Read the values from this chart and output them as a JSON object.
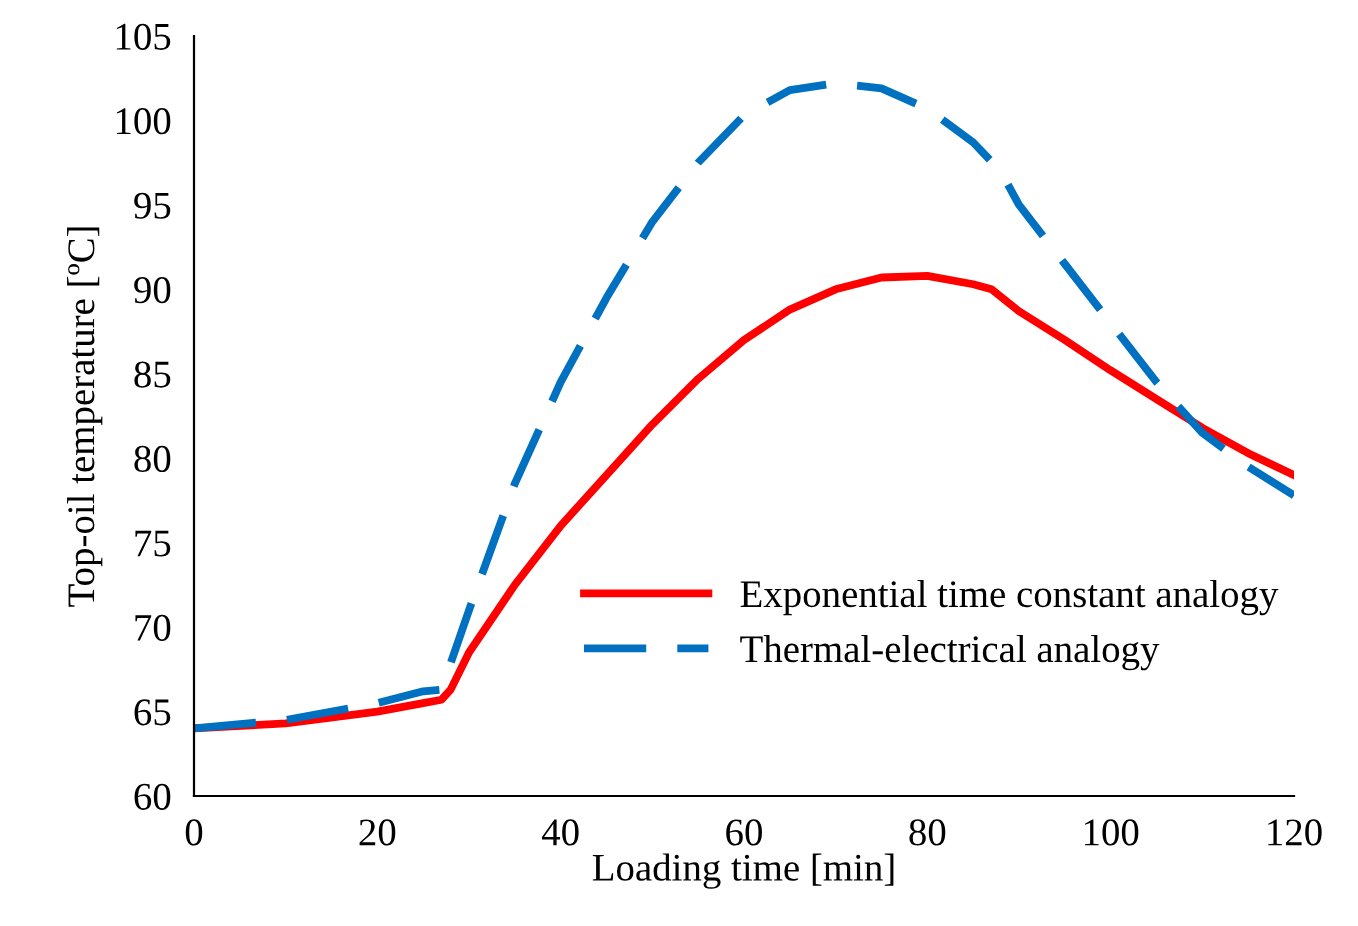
{
  "chart_data": {
    "type": "line",
    "xlabel": "Loading time [min]",
    "ylabel": "Top-oil temperature [ºC]",
    "xlim": [
      0,
      120
    ],
    "xticks": [
      0,
      20,
      40,
      60,
      80,
      100,
      120
    ],
    "ylim": [
      60,
      105
    ],
    "yticks": [
      60,
      65,
      70,
      75,
      80,
      85,
      90,
      95,
      100,
      105
    ],
    "grid": false,
    "legend": "right",
    "marker": "none",
    "series": [
      {
        "name": "Exponential time constant analogy",
        "color": "#ff0000",
        "line_style": "solid",
        "x": [
          0,
          10,
          20,
          25,
          27,
          28,
          30,
          35,
          40,
          45,
          50,
          55,
          60,
          65,
          70,
          75,
          80,
          85,
          87,
          90,
          95,
          100,
          105,
          110,
          115,
          120
        ],
        "values": [
          64,
          64.3,
          65,
          65.5,
          65.7,
          66.3,
          68.5,
          72.5,
          76,
          79,
          82,
          84.7,
          87,
          88.8,
          90,
          90.7,
          90.8,
          90.3,
          90,
          88.7,
          87,
          85.2,
          83.5,
          81.8,
          80.3,
          79
        ]
      },
      {
        "name": "Thermal-electrical analogy",
        "color": "#0070c0",
        "line_style": "dashed",
        "x": [
          0,
          10,
          20,
          25,
          27,
          30,
          35,
          40,
          45,
          50,
          55,
          60,
          65,
          70,
          75,
          80,
          85,
          88,
          90,
          95,
          100,
          105,
          110,
          115,
          120
        ],
        "values": [
          64,
          64.5,
          65.5,
          66.2,
          66.3,
          71,
          78.5,
          84.5,
          89.5,
          94,
          97.5,
          100.3,
          101.8,
          102.2,
          101.9,
          100.7,
          98.7,
          97,
          95,
          91.5,
          88,
          84.5,
          81.5,
          79.5,
          77.8
        ]
      }
    ]
  }
}
